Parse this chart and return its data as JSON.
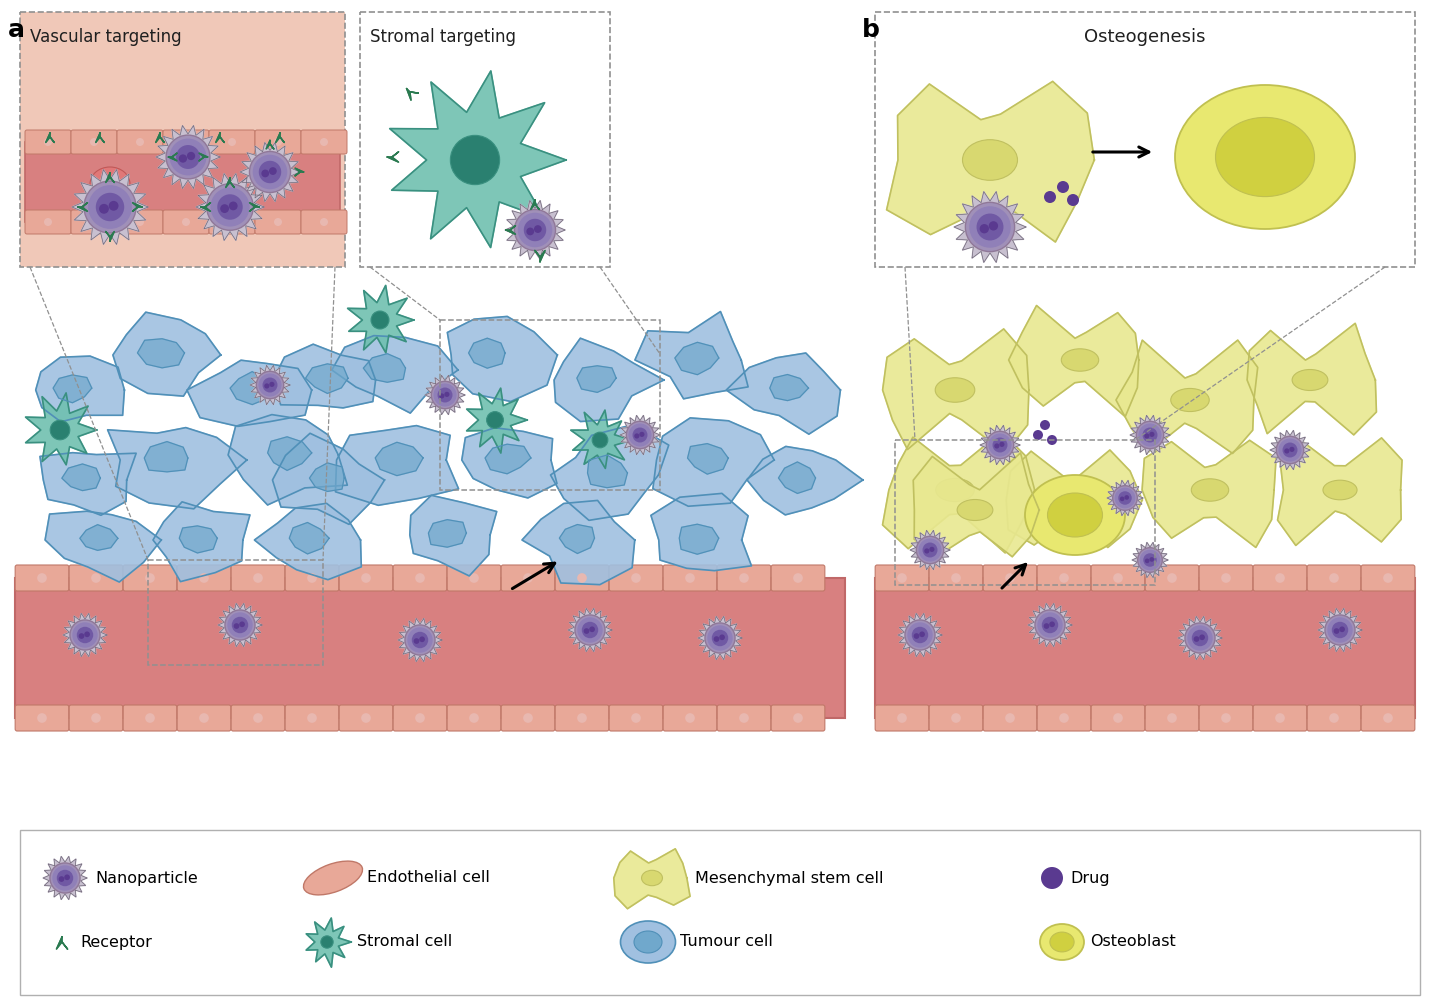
{
  "bg_color": "#ffffff",
  "title_a": "a",
  "title_b": "b",
  "vascular_label": "Vascular targeting",
  "stromal_label": "Stromal targeting",
  "osteo_label": "Osteogenesis",
  "colors": {
    "nanoparticle_spike": "#c8c0d0",
    "nanoparticle_ring": "#a090b8",
    "nanoparticle_body": "#9080b8",
    "nanoparticle_nucleus": "#6850a0",
    "drug_color": "#5a3a90",
    "tumour_fill": "#a0c0e0",
    "tumour_stroke": "#5090b8",
    "tumour_nucleus": "#70a8cc",
    "stromal_fill": "#70c0b0",
    "stromal_stroke": "#3a9080",
    "stromal_nucleus": "#2a8070",
    "endothelial_fill": "#e8a898",
    "endothelial_stroke": "#c07868",
    "vessel_fill": "#d88080",
    "vessel_border": "#c06868",
    "vessel_dot": "#e8b8b0",
    "receptor_color": "#2a7a50",
    "mesenchymal_fill": "#e8e890",
    "mesenchymal_stroke": "#c0c060",
    "mesenchymal_nucleus": "#d8d870",
    "osteoblast_fill": "#e8e870",
    "osteoblast_stroke": "#c0c050",
    "osteoblast_nucleus": "#d0d040",
    "vascular_bg": "#f0c8b8",
    "white": "#ffffff",
    "dash_color": "#909090",
    "text_color": "#202020"
  }
}
